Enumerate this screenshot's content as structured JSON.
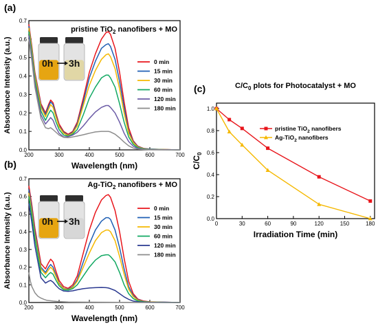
{
  "panels": [
    {
      "panel_label": "(a)",
      "title_parts": [
        "pristine TiO",
        "2",
        " nanofibers + MO"
      ],
      "inset": {
        "before": "0h",
        "after": "3h"
      },
      "chart_data": {
        "type": "line",
        "xlabel": "Wavelength (nm)",
        "ylabel": "Absorbance Intensity (a.u.)",
        "xlim": [
          200,
          700
        ],
        "ylim": [
          0,
          0.7
        ],
        "xticks": [
          200,
          300,
          400,
          500,
          600,
          700
        ],
        "yticks": [
          0.0,
          0.1,
          0.2,
          0.3,
          0.4,
          0.5,
          0.6,
          0.7
        ],
        "legend_position": "right",
        "series": [
          {
            "name": "0 min",
            "color": "#e8151b",
            "x": [
              200,
              210,
              220,
              240,
              255,
              265,
              272,
              280,
              290,
              300,
              315,
              330,
              345,
              360,
              380,
              400,
              420,
              440,
              455,
              463,
              470,
              485,
              500,
              515,
              530,
              545,
              560,
              580,
              600,
              650,
              700
            ],
            "y": [
              0.68,
              0.56,
              0.42,
              0.25,
              0.2,
              0.245,
              0.27,
              0.255,
              0.195,
              0.14,
              0.1,
              0.085,
              0.1,
              0.15,
              0.28,
              0.42,
              0.52,
              0.6,
              0.635,
              0.64,
              0.625,
              0.55,
              0.42,
              0.26,
              0.12,
              0.05,
              0.02,
              0.008,
              0.004,
              0.002,
              0.0
            ]
          },
          {
            "name": "15 min",
            "color": "#1f5fb4",
            "x": [
              200,
              210,
              220,
              240,
              255,
              265,
              272,
              280,
              290,
              300,
              315,
              330,
              345,
              360,
              380,
              400,
              420,
              440,
              455,
              463,
              470,
              485,
              500,
              515,
              530,
              545,
              560,
              580,
              600,
              650,
              700
            ],
            "y": [
              0.67,
              0.55,
              0.41,
              0.24,
              0.19,
              0.235,
              0.26,
              0.245,
              0.185,
              0.13,
              0.095,
              0.08,
              0.095,
              0.14,
              0.26,
              0.39,
              0.48,
              0.55,
              0.57,
              0.575,
              0.56,
              0.49,
              0.37,
              0.23,
              0.1,
              0.045,
              0.018,
              0.007,
              0.004,
              0.002,
              0.0
            ]
          },
          {
            "name": "30 min",
            "color": "#f5b800",
            "x": [
              200,
              210,
              220,
              240,
              255,
              265,
              272,
              280,
              290,
              300,
              315,
              330,
              345,
              360,
              380,
              400,
              420,
              440,
              455,
              463,
              470,
              485,
              500,
              515,
              530,
              545,
              560,
              580,
              600,
              650,
              700
            ],
            "y": [
              0.66,
              0.54,
              0.4,
              0.23,
              0.18,
              0.22,
              0.245,
              0.23,
              0.175,
              0.125,
              0.09,
              0.078,
              0.09,
              0.13,
              0.24,
              0.35,
              0.43,
              0.49,
              0.515,
              0.52,
              0.505,
              0.44,
              0.33,
              0.2,
              0.09,
              0.04,
              0.015,
              0.006,
              0.003,
              0.002,
              0.0
            ]
          },
          {
            "name": "60 min",
            "color": "#11a862",
            "x": [
              200,
              210,
              220,
              240,
              255,
              265,
              272,
              280,
              290,
              300,
              315,
              330,
              345,
              360,
              380,
              400,
              420,
              440,
              455,
              463,
              470,
              485,
              500,
              515,
              530,
              545,
              560,
              580,
              600,
              650,
              700
            ],
            "y": [
              0.64,
              0.52,
              0.38,
              0.21,
              0.16,
              0.195,
              0.215,
              0.2,
              0.15,
              0.11,
              0.08,
              0.075,
              0.085,
              0.11,
              0.19,
              0.28,
              0.34,
              0.39,
              0.405,
              0.405,
              0.39,
              0.34,
              0.25,
              0.15,
              0.07,
              0.03,
              0.012,
              0.005,
              0.003,
              0.001,
              0.0
            ]
          },
          {
            "name": "120 min",
            "color": "#6b5ba6",
            "x": [
              200,
              210,
              220,
              240,
              255,
              265,
              272,
              280,
              290,
              300,
              315,
              330,
              345,
              360,
              380,
              400,
              420,
              440,
              455,
              463,
              470,
              485,
              500,
              515,
              530,
              545,
              560,
              580,
              600,
              650,
              700
            ],
            "y": [
              0.62,
              0.5,
              0.36,
              0.19,
              0.14,
              0.16,
              0.175,
              0.16,
              0.12,
              0.09,
              0.07,
              0.072,
              0.08,
              0.095,
              0.13,
              0.17,
              0.205,
              0.23,
              0.24,
              0.24,
              0.23,
              0.2,
              0.15,
              0.09,
              0.045,
              0.02,
              0.008,
              0.003,
              0.002,
              0.001,
              0.0
            ]
          },
          {
            "name": "180 min",
            "color": "#8c8c8c",
            "x": [
              200,
              210,
              220,
              240,
              255,
              265,
              272,
              280,
              290,
              300,
              315,
              330,
              345,
              360,
              380,
              400,
              420,
              440,
              455,
              463,
              470,
              485,
              500,
              515,
              530,
              545,
              560,
              580,
              600,
              650,
              700
            ],
            "y": [
              0.6,
              0.48,
              0.34,
              0.17,
              0.12,
              0.115,
              0.12,
              0.11,
              0.095,
              0.08,
              0.068,
              0.066,
              0.07,
              0.075,
              0.082,
              0.09,
              0.097,
              0.1,
              0.1,
              0.1,
              0.097,
              0.085,
              0.065,
              0.042,
              0.022,
              0.01,
              0.004,
              0.002,
              0.001,
              0.0,
              0.0
            ]
          }
        ]
      }
    },
    {
      "panel_label": "(b)",
      "title_parts": [
        "Ag-TiO",
        "2",
        " nanofibers + MO"
      ],
      "inset": {
        "before": "0h",
        "after": "3h"
      },
      "chart_data": {
        "type": "line",
        "xlabel": "Wavelength (nm)",
        "ylabel": "Absorbance Intensity (a.u.)",
        "xlim": [
          200,
          700
        ],
        "ylim": [
          0,
          0.7
        ],
        "xticks": [
          200,
          300,
          400,
          500,
          600,
          700
        ],
        "yticks": [
          0.0,
          0.1,
          0.2,
          0.3,
          0.4,
          0.5,
          0.6,
          0.7
        ],
        "legend_position": "right",
        "series": [
          {
            "name": "0 min",
            "color": "#e8151b",
            "x": [
              200,
              210,
              220,
              240,
              255,
              265,
              272,
              280,
              290,
              300,
              315,
              330,
              345,
              360,
              380,
              400,
              420,
              440,
              455,
              463,
              470,
              485,
              500,
              515,
              530,
              545,
              560,
              580,
              600,
              650,
              700
            ],
            "y": [
              0.66,
              0.55,
              0.42,
              0.22,
              0.19,
              0.225,
              0.245,
              0.23,
              0.175,
              0.125,
              0.09,
              0.08,
              0.1,
              0.15,
              0.28,
              0.41,
              0.51,
              0.58,
              0.605,
              0.61,
              0.595,
              0.52,
              0.4,
              0.25,
              0.12,
              0.05,
              0.02,
              0.008,
              0.004,
              0.002,
              0.0
            ]
          },
          {
            "name": "15 min",
            "color": "#1f5fb4",
            "x": [
              200,
              210,
              220,
              240,
              255,
              265,
              272,
              280,
              290,
              300,
              315,
              330,
              345,
              360,
              380,
              400,
              420,
              440,
              455,
              463,
              470,
              485,
              500,
              515,
              530,
              545,
              560,
              580,
              600,
              650,
              700
            ],
            "y": [
              0.64,
              0.53,
              0.4,
              0.2,
              0.17,
              0.2,
              0.215,
              0.2,
              0.155,
              0.11,
              0.08,
              0.075,
              0.09,
              0.13,
              0.23,
              0.33,
              0.41,
              0.46,
              0.48,
              0.48,
              0.47,
              0.41,
              0.31,
              0.19,
              0.09,
              0.04,
              0.016,
              0.006,
              0.003,
              0.002,
              0.0
            ]
          },
          {
            "name": "30 min",
            "color": "#f5b800",
            "x": [
              200,
              210,
              220,
              240,
              255,
              265,
              272,
              280,
              290,
              300,
              315,
              330,
              345,
              360,
              380,
              400,
              420,
              440,
              455,
              463,
              470,
              485,
              500,
              515,
              530,
              545,
              560,
              580,
              600,
              650,
              700
            ],
            "y": [
              0.62,
              0.51,
              0.38,
              0.19,
              0.16,
              0.185,
              0.2,
              0.185,
              0.145,
              0.105,
              0.078,
              0.072,
              0.085,
              0.12,
              0.2,
              0.28,
              0.35,
              0.395,
              0.41,
              0.41,
              0.4,
              0.35,
              0.26,
              0.16,
              0.075,
              0.034,
              0.013,
              0.005,
              0.003,
              0.001,
              0.0
            ]
          },
          {
            "name": "60 min",
            "color": "#11a862",
            "x": [
              200,
              210,
              220,
              240,
              255,
              265,
              272,
              280,
              290,
              300,
              315,
              330,
              345,
              360,
              380,
              400,
              420,
              440,
              455,
              463,
              470,
              485,
              500,
              515,
              530,
              545,
              560,
              580,
              600,
              650,
              700
            ],
            "y": [
              0.6,
              0.49,
              0.36,
              0.17,
              0.14,
              0.16,
              0.17,
              0.16,
              0.125,
              0.095,
              0.072,
              0.07,
              0.078,
              0.1,
              0.15,
              0.2,
              0.24,
              0.265,
              0.27,
              0.27,
              0.26,
              0.23,
              0.17,
              0.1,
              0.05,
              0.022,
              0.009,
              0.004,
              0.002,
              0.001,
              0.0
            ]
          },
          {
            "name": "120 min",
            "color": "#2a3990",
            "x": [
              200,
              210,
              220,
              240,
              255,
              265,
              272,
              280,
              290,
              300,
              315,
              330,
              345,
              360,
              380,
              400,
              420,
              440,
              455,
              463,
              470,
              485,
              500,
              515,
              530,
              545,
              560,
              580,
              600,
              650,
              700
            ],
            "y": [
              0.56,
              0.45,
              0.32,
              0.14,
              0.11,
              0.12,
              0.125,
              0.115,
              0.095,
              0.078,
              0.065,
              0.063,
              0.066,
              0.072,
              0.078,
              0.082,
              0.084,
              0.085,
              0.084,
              0.082,
              0.078,
              0.068,
              0.05,
              0.032,
              0.018,
              0.008,
              0.004,
              0.002,
              0.001,
              0.0,
              0.0
            ]
          },
          {
            "name": "180 min",
            "color": "#8c8c8c",
            "x": [
              200,
              205,
              210,
              220,
              230,
              240,
              250,
              260,
              280,
              300,
              330,
              400,
              500,
              600,
              700
            ],
            "y": [
              0.17,
              0.12,
              0.09,
              0.055,
              0.035,
              0.025,
              0.018,
              0.012,
              0.008,
              0.005,
              0.003,
              0.002,
              0.001,
              0.0,
              0.0
            ]
          }
        ]
      }
    },
    {
      "panel_label": "(c)",
      "title_parts": [
        "C/C",
        "0",
        " plots for Photocatalyst + MO"
      ],
      "ylabel_parts": [
        "C/C",
        "0"
      ],
      "chart_data": {
        "type": "line",
        "xlabel": "Irradiation Time (min)",
        "ylabel": "C/C0",
        "xlim": [
          0,
          185
        ],
        "ylim": [
          0,
          1.05
        ],
        "xticks": [
          0,
          30,
          60,
          90,
          120,
          150,
          180
        ],
        "yticks": [
          0.0,
          0.2,
          0.4,
          0.6,
          0.8,
          1.0
        ],
        "legend_position": "top-right",
        "series": [
          {
            "name_parts": [
              "pristine TiO",
              "2",
              " nanofibers"
            ],
            "color": "#e8151b",
            "marker": "square",
            "x": [
              0,
              15,
              30,
              60,
              120,
              180
            ],
            "y": [
              1.0,
              0.9,
              0.82,
              0.64,
              0.38,
              0.16
            ]
          },
          {
            "name_parts": [
              "Ag-TiO",
              "2",
              " nanofibers"
            ],
            "color": "#f5b800",
            "marker": "triangle",
            "x": [
              0,
              15,
              30,
              60,
              120,
              180
            ],
            "y": [
              1.0,
              0.79,
              0.67,
              0.44,
              0.13,
              0.0
            ]
          }
        ]
      }
    }
  ]
}
